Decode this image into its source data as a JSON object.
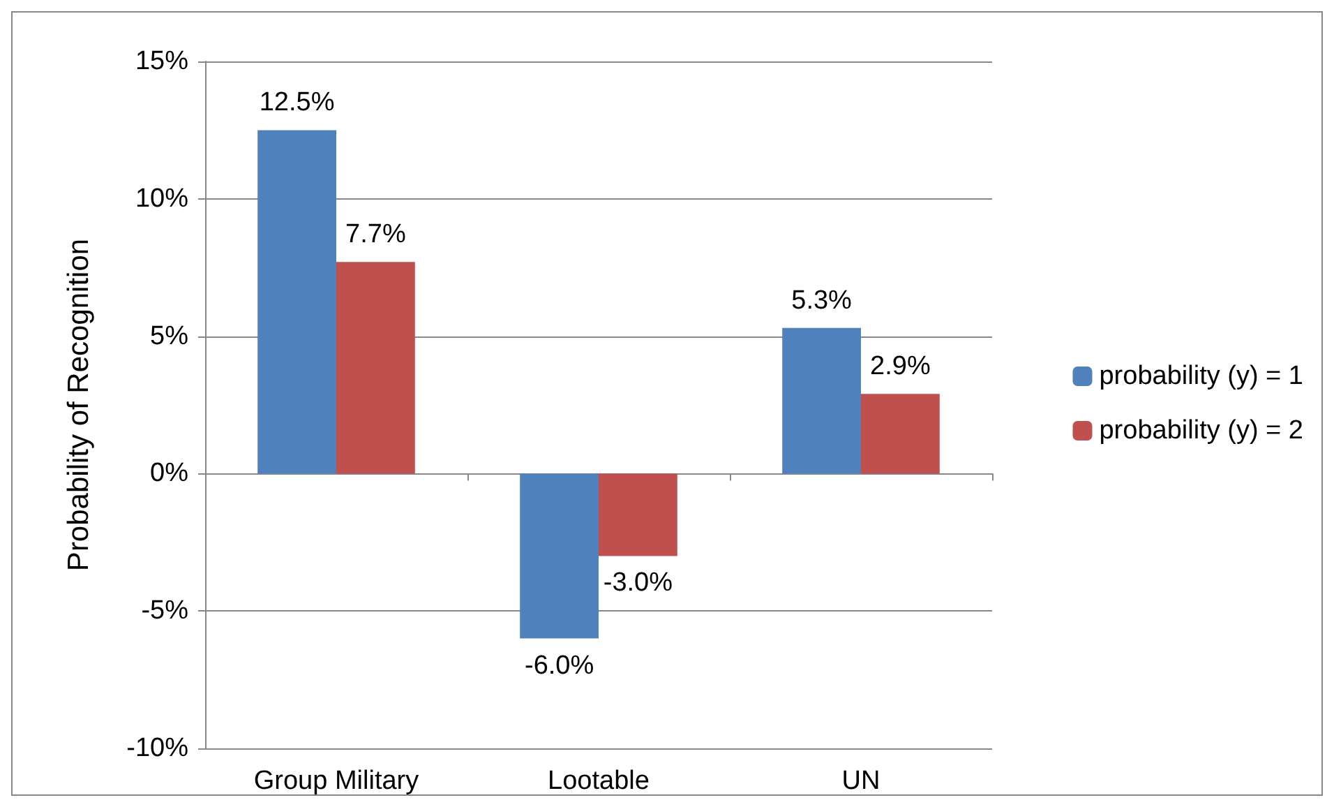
{
  "chart_data": {
    "type": "bar",
    "ylabel": "Probability of Recognition",
    "categories": [
      "Group Military",
      "Lootable",
      "UN"
    ],
    "series": [
      {
        "name": "probability (y) = 1",
        "color": "#4f81bd",
        "values": [
          12.5,
          -6.0,
          5.3
        ],
        "value_labels": [
          "12.5%",
          "-6.0%",
          "5.3%"
        ]
      },
      {
        "name": "probability (y) = 2",
        "color": "#c0504d",
        "values": [
          7.7,
          -3.0,
          2.9
        ],
        "value_labels": [
          "7.7%",
          "-3.0%",
          "2.9%"
        ]
      }
    ],
    "ylim": [
      -10,
      15
    ],
    "yticks": [
      {
        "value": -10,
        "label": "-10%"
      },
      {
        "value": -5,
        "label": "-5%"
      },
      {
        "value": 0,
        "label": "0%"
      },
      {
        "value": 5,
        "label": "5%"
      },
      {
        "value": 10,
        "label": "10%"
      },
      {
        "value": 15,
        "label": "15%"
      }
    ],
    "grid": "y",
    "legend": "right"
  }
}
